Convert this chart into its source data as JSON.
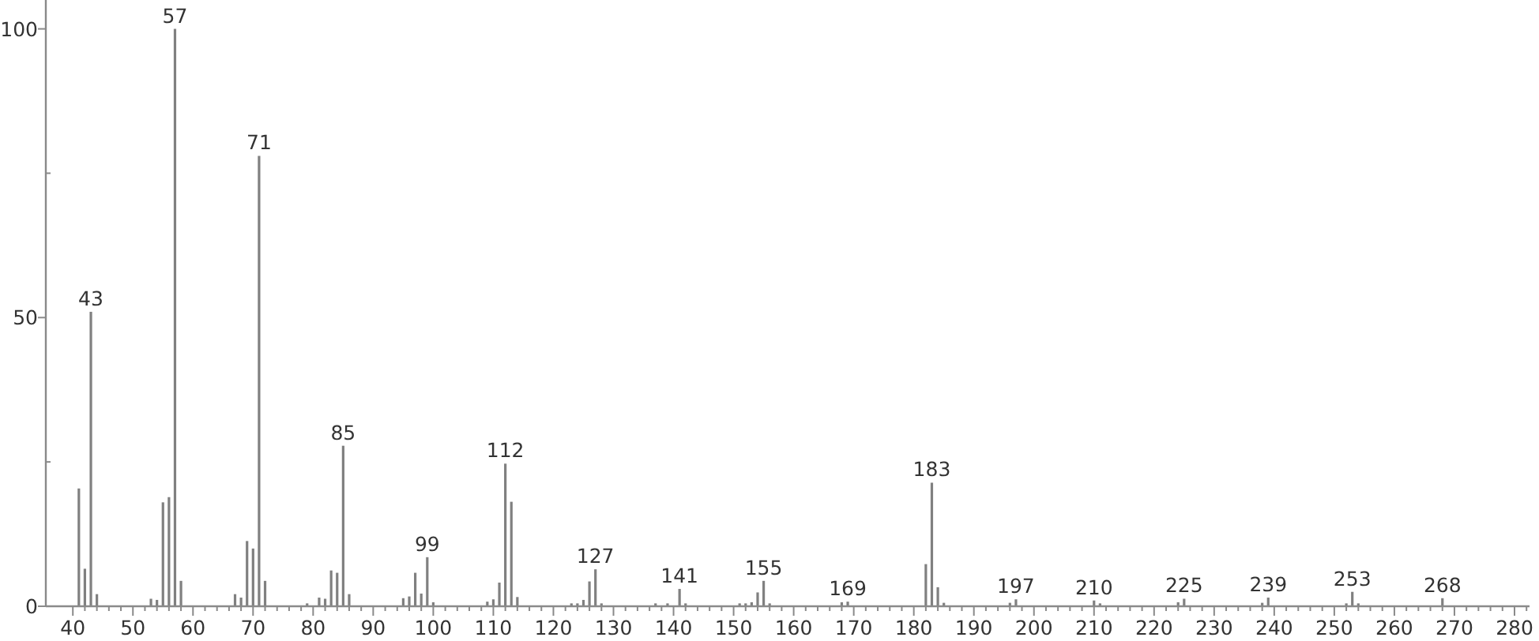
{
  "chart_data": {
    "type": "bar",
    "color": "#808080",
    "x": [
      41,
      42,
      43,
      44,
      53,
      54,
      55,
      56,
      57,
      58,
      67,
      68,
      69,
      70,
      71,
      72,
      79,
      81,
      82,
      83,
      84,
      85,
      86,
      95,
      96,
      97,
      98,
      99,
      100,
      109,
      110,
      111,
      112,
      113,
      114,
      123,
      124,
      125,
      126,
      127,
      128,
      137,
      139,
      141,
      142,
      151,
      152,
      153,
      154,
      155,
      156,
      168,
      169,
      182,
      183,
      184,
      185,
      196,
      197,
      210,
      211,
      224,
      225,
      238,
      239,
      252,
      253,
      254,
      268
    ],
    "values": [
      20.4,
      6.5,
      51,
      2.1,
      1.3,
      1.1,
      18,
      18.9,
      100,
      4.4,
      2.1,
      1.5,
      11.3,
      10,
      78,
      4.4,
      0.5,
      1.5,
      1.3,
      6.2,
      5.8,
      27.8,
      2.1,
      1.4,
      1.7,
      5.8,
      2.2,
      8.5,
      0.7,
      0.8,
      1.2,
      4.1,
      24.7,
      18.1,
      1.6,
      0.5,
      0.5,
      1.1,
      4.3,
      6.4,
      0.5,
      0.5,
      0.5,
      3,
      0.5,
      0.5,
      0.5,
      0.7,
      2.4,
      4.4,
      0.5,
      0.7,
      0.8,
      7.3,
      21.4,
      3.3,
      0.6,
      0.6,
      1.2,
      1,
      0.5,
      0.7,
      1.3,
      0.6,
      1.5,
      0.5,
      2.5,
      0.5,
      1.4
    ],
    "xlim": [
      35.5,
      282.5
    ],
    "ylim": [
      0,
      105
    ],
    "xticks": [
      40,
      {
        "value": 42,
        "label": null
      },
      {
        "value": 44,
        "label": null
      },
      {
        "value": 46,
        "label": null
      },
      {
        "value": 48,
        "label": null
      },
      50,
      {
        "value": 52,
        "label": null
      },
      {
        "value": 54,
        "label": null
      },
      {
        "value": 56,
        "label": null
      },
      {
        "value": 58,
        "label": null
      },
      60,
      {
        "value": 62,
        "label": null
      },
      {
        "value": 64,
        "label": null
      },
      {
        "value": 66,
        "label": null
      },
      {
        "value": 68,
        "label": null
      },
      70,
      {
        "value": 72,
        "label": null
      },
      {
        "value": 74,
        "label": null
      },
      {
        "value": 76,
        "label": null
      },
      {
        "value": 78,
        "label": null
      },
      80,
      {
        "value": 82,
        "label": null
      },
      {
        "value": 84,
        "label": null
      },
      {
        "value": 86,
        "label": null
      },
      {
        "value": 88,
        "label": null
      },
      90,
      {
        "value": 92,
        "label": null
      },
      {
        "value": 94,
        "label": null
      },
      {
        "value": 96,
        "label": null
      },
      {
        "value": 98,
        "label": null
      },
      100,
      {
        "value": 102,
        "label": null
      },
      {
        "value": 104,
        "label": null
      },
      {
        "value": 106,
        "label": null
      },
      {
        "value": 108,
        "label": null
      },
      110,
      {
        "value": 112,
        "label": null
      },
      {
        "value": 114,
        "label": null
      },
      {
        "value": 116,
        "label": null
      },
      {
        "value": 118,
        "label": null
      },
      120,
      {
        "value": 122,
        "label": null
      },
      {
        "value": 124,
        "label": null
      },
      {
        "value": 126,
        "label": null
      },
      {
        "value": 128,
        "label": null
      },
      130,
      {
        "value": 132,
        "label": null
      },
      {
        "value": 134,
        "label": null
      },
      {
        "value": 136,
        "label": null
      },
      {
        "value": 138,
        "label": null
      },
      140,
      {
        "value": 142,
        "label": null
      },
      {
        "value": 144,
        "label": null
      },
      {
        "value": 146,
        "label": null
      },
      {
        "value": 148,
        "label": null
      },
      150,
      {
        "value": 152,
        "label": null
      },
      {
        "value": 154,
        "label": null
      },
      {
        "value": 156,
        "label": null
      },
      {
        "value": 158,
        "label": null
      },
      160,
      {
        "value": 162,
        "label": null
      },
      {
        "value": 164,
        "label": null
      },
      {
        "value": 166,
        "label": null
      },
      {
        "value": 168,
        "label": null
      },
      170,
      {
        "value": 172,
        "label": null
      },
      {
        "value": 174,
        "label": null
      },
      {
        "value": 176,
        "label": null
      },
      {
        "value": 178,
        "label": null
      },
      180,
      {
        "value": 182,
        "label": null
      },
      {
        "value": 184,
        "label": null
      },
      {
        "value": 186,
        "label": null
      },
      {
        "value": 188,
        "label": null
      },
      190,
      {
        "value": 192,
        "label": null
      },
      {
        "value": 194,
        "label": null
      },
      {
        "value": 196,
        "label": null
      },
      {
        "value": 198,
        "label": null
      },
      200,
      {
        "value": 202,
        "label": null
      },
      {
        "value": 204,
        "label": null
      },
      {
        "value": 206,
        "label": null
      },
      {
        "value": 208,
        "label": null
      },
      210,
      {
        "value": 212,
        "label": null
      },
      {
        "value": 214,
        "label": null
      },
      {
        "value": 216,
        "label": null
      },
      {
        "value": 218,
        "label": null
      },
      220,
      {
        "value": 222,
        "label": null
      },
      {
        "value": 224,
        "label": null
      },
      {
        "value": 226,
        "label": null
      },
      {
        "value": 228,
        "label": null
      },
      230,
      {
        "value": 232,
        "label": null
      },
      {
        "value": 234,
        "label": null
      },
      {
        "value": 236,
        "label": null
      },
      {
        "value": 238,
        "label": null
      },
      240,
      {
        "value": 242,
        "label": null
      },
      {
        "value": 244,
        "label": null
      },
      {
        "value": 246,
        "label": null
      },
      {
        "value": 248,
        "label": null
      },
      250,
      {
        "value": 252,
        "label": null
      },
      {
        "value": 254,
        "label": null
      },
      {
        "value": 256,
        "label": null
      },
      {
        "value": 258,
        "label": null
      },
      260,
      {
        "value": 262,
        "label": null
      },
      {
        "value": 264,
        "label": null
      },
      {
        "value": 266,
        "label": null
      },
      {
        "value": 268,
        "label": null
      },
      270,
      {
        "value": 272,
        "label": null
      },
      {
        "value": 274,
        "label": null
      },
      {
        "value": 276,
        "label": null
      },
      {
        "value": 278,
        "label": null
      },
      280,
      {
        "value": 282,
        "label": null
      }
    ],
    "yticks": [
      0,
      {
        "value": 25,
        "label": null
      },
      50,
      {
        "value": 75,
        "label": null
      },
      100
    ],
    "annotations": [
      {
        "text": "43",
        "x": 43,
        "y": 51
      },
      {
        "text": "57",
        "x": 57,
        "y": 100
      },
      {
        "text": "71",
        "x": 71,
        "y": 78
      },
      {
        "text": "85",
        "x": 85,
        "y": 27.8
      },
      {
        "text": "99",
        "x": 99,
        "y": 8.5
      },
      {
        "text": "112",
        "x": 112,
        "y": 24.7
      },
      {
        "text": "127",
        "x": 127,
        "y": 6.4
      },
      {
        "text": "141",
        "x": 141,
        "y": 3
      },
      {
        "text": "155",
        "x": 155,
        "y": 4.4
      },
      {
        "text": "169",
        "x": 169,
        "y": 0.8
      },
      {
        "text": "183",
        "x": 183,
        "y": 21.4
      },
      {
        "text": "197",
        "x": 197,
        "y": 1.2
      },
      {
        "text": "210",
        "x": 210,
        "y": 1
      },
      {
        "text": "225",
        "x": 225,
        "y": 1.3
      },
      {
        "text": "239",
        "x": 239,
        "y": 1.5
      },
      {
        "text": "253",
        "x": 253,
        "y": 2.5
      },
      {
        "text": "268",
        "x": 268,
        "y": 1.4
      }
    ]
  }
}
